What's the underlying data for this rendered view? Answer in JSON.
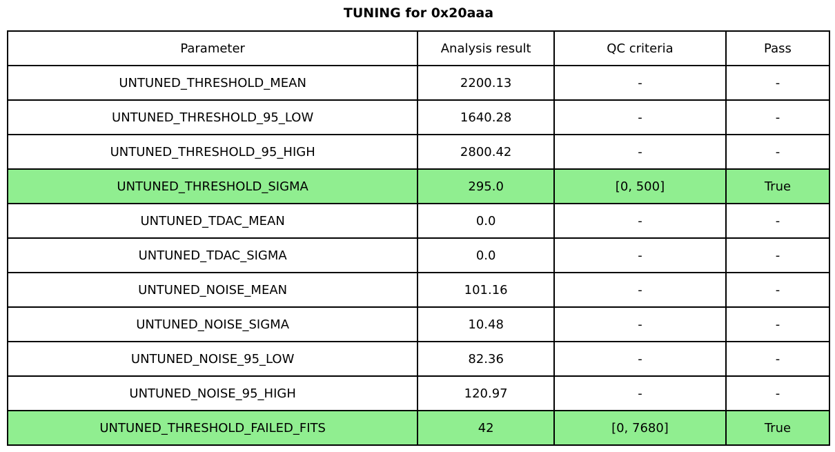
{
  "colors": {
    "highlight_green": "#90EE90",
    "grid": "#000000",
    "background": "#ffffff"
  },
  "chart_data": {
    "type": "table",
    "title": "TUNING for 0x20aaa",
    "columns": [
      "Parameter",
      "Analysis result",
      "QC criteria",
      "Pass"
    ],
    "rows": [
      {
        "parameter": "UNTUNED_THRESHOLD_MEAN",
        "analysis_result": "2200.13",
        "qc_criteria": "-",
        "pass": "-",
        "highlight": false
      },
      {
        "parameter": "UNTUNED_THRESHOLD_95_LOW",
        "analysis_result": "1640.28",
        "qc_criteria": "-",
        "pass": "-",
        "highlight": false
      },
      {
        "parameter": "UNTUNED_THRESHOLD_95_HIGH",
        "analysis_result": "2800.42",
        "qc_criteria": "-",
        "pass": "-",
        "highlight": false
      },
      {
        "parameter": "UNTUNED_THRESHOLD_SIGMA",
        "analysis_result": "295.0",
        "qc_criteria": "[0, 500]",
        "pass": "True",
        "highlight": true
      },
      {
        "parameter": "UNTUNED_TDAC_MEAN",
        "analysis_result": "0.0",
        "qc_criteria": "-",
        "pass": "-",
        "highlight": false
      },
      {
        "parameter": "UNTUNED_TDAC_SIGMA",
        "analysis_result": "0.0",
        "qc_criteria": "-",
        "pass": "-",
        "highlight": false
      },
      {
        "parameter": "UNTUNED_NOISE_MEAN",
        "analysis_result": "101.16",
        "qc_criteria": "-",
        "pass": "-",
        "highlight": false
      },
      {
        "parameter": "UNTUNED_NOISE_SIGMA",
        "analysis_result": "10.48",
        "qc_criteria": "-",
        "pass": "-",
        "highlight": false
      },
      {
        "parameter": "UNTUNED_NOISE_95_LOW",
        "analysis_result": "82.36",
        "qc_criteria": "-",
        "pass": "-",
        "highlight": false
      },
      {
        "parameter": "UNTUNED_NOISE_95_HIGH",
        "analysis_result": "120.97",
        "qc_criteria": "-",
        "pass": "-",
        "highlight": false
      },
      {
        "parameter": "UNTUNED_THRESHOLD_FAILED_FITS",
        "analysis_result": "42",
        "qc_criteria": "[0, 7680]",
        "pass": "True",
        "highlight": true
      }
    ],
    "layout": {
      "column_width_percents": [
        49.9,
        16.6,
        20.9,
        12.6
      ],
      "grid": true,
      "highlighted_row_indices": [
        3,
        10
      ]
    }
  }
}
